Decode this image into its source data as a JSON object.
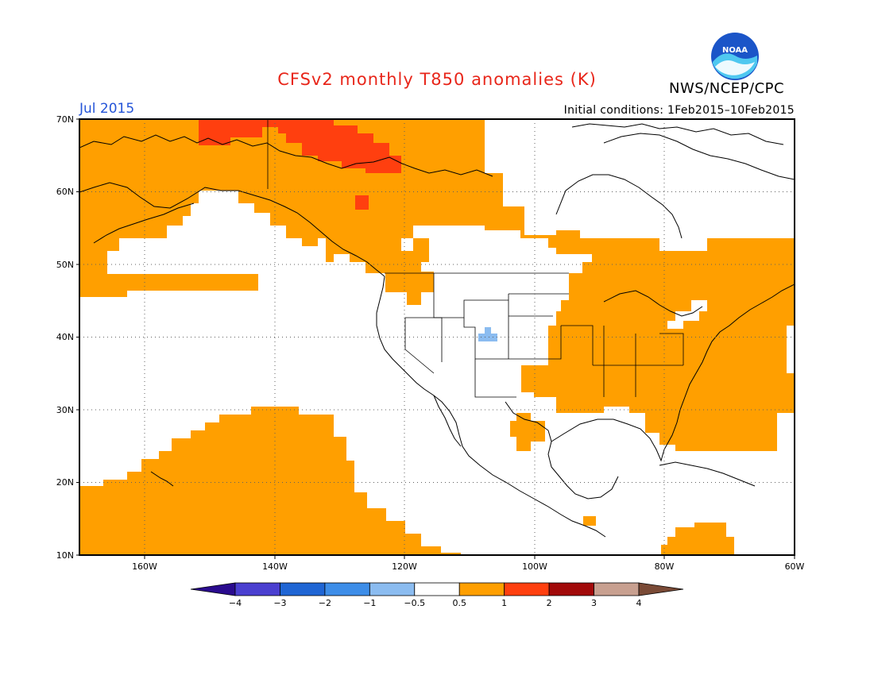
{
  "title": "CFSv2 monthly T850 anomalies (K)",
  "valid_month": "Jul 2015",
  "initial_conditions": "Initial conditions: 1Feb2015–10Feb2015",
  "agency": "NWS/NCEP/CPC",
  "logo_text": "NOAA",
  "lat_labels": [
    "70N",
    "60N",
    "50N",
    "40N",
    "30N",
    "20N",
    "10N"
  ],
  "lon_labels": [
    "160W",
    "140W",
    "120W",
    "100W",
    "80W",
    "60W"
  ],
  "colorbar": {
    "tick_labels": [
      "−4",
      "−3",
      "−2",
      "−1",
      "−0.5",
      "0.5",
      "1",
      "2",
      "3",
      "4"
    ],
    "colors": [
      "#2a0b8e",
      "#4a3fd0",
      "#1f65d4",
      "#3d8de8",
      "#8bbcf0",
      "#ffffff",
      "#ff9f00",
      "#ff3f0f",
      "#a20a0a",
      "#c8a090",
      "#7a4a36"
    ]
  },
  "map_colors": {
    "warm_0_5_to_1": "#ff9f00",
    "warm_1_to_2": "#ff3f0f",
    "cool_minus1_to_minus0_5": "#8bbcf0",
    "neutral": "#ffffff"
  }
}
